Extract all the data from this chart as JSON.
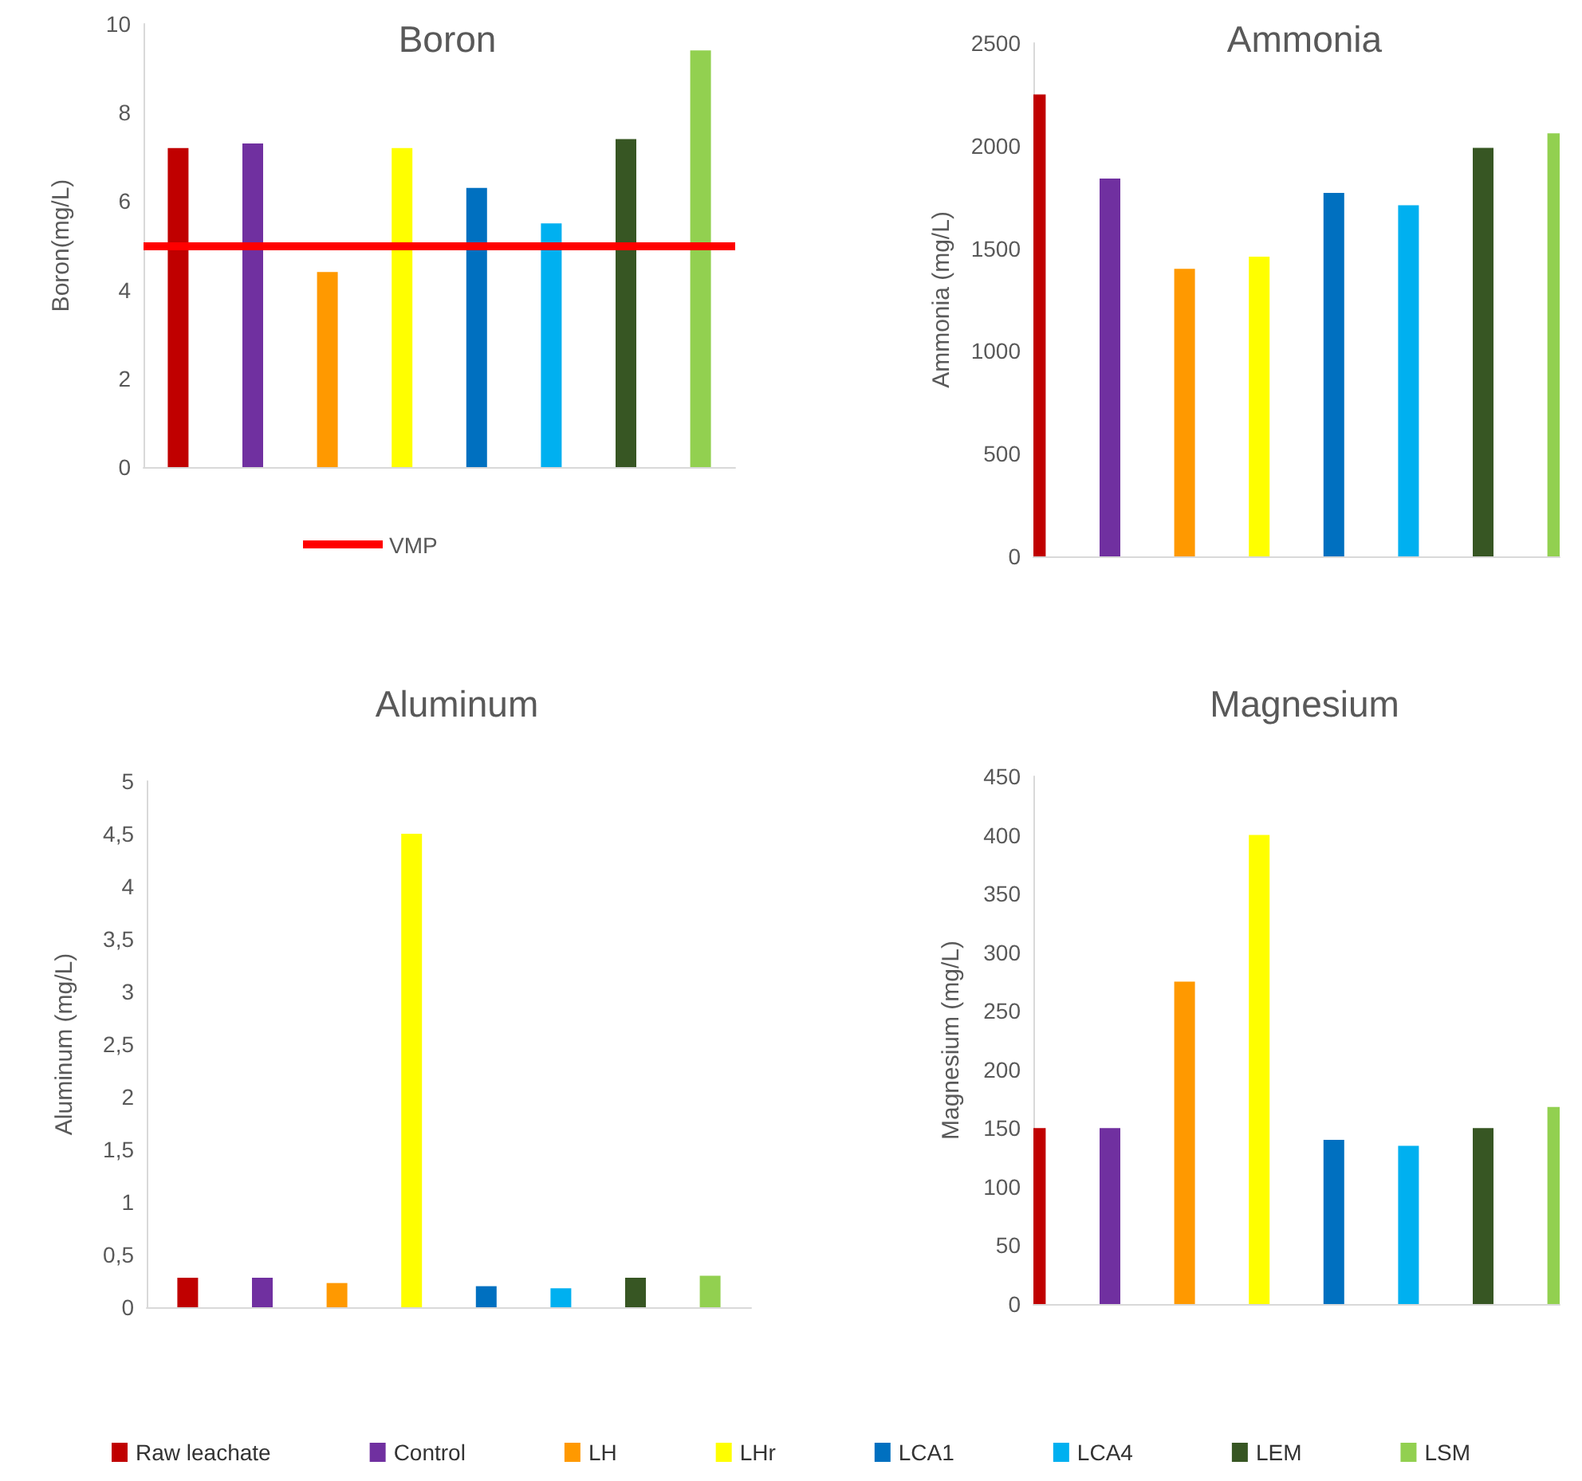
{
  "chart_data": [
    {
      "type": "bar",
      "title": "Boron",
      "ylabel": "Boron(mg/L)",
      "categories": [
        null
      ],
      "tick_labels": "y",
      "ylim": [
        0,
        10
      ],
      "yticks": [
        0,
        2,
        4,
        6,
        8,
        10
      ],
      "ref_lines": [
        {
          "axis": "y",
          "value": 5,
          "label": "VMP",
          "color": "#ff0000"
        }
      ],
      "series": [
        {
          "color": "#c00000",
          "values": [
            7.2
          ]
        },
        {
          "color": "#7030a0",
          "values": [
            7.3
          ]
        },
        {
          "color": "#ff9900",
          "values": [
            4.4
          ]
        },
        {
          "color": "#ffff00",
          "values": [
            7.2
          ]
        },
        {
          "color": "#0070c0",
          "values": [
            6.3
          ]
        },
        {
          "color": "#00b0f0",
          "values": [
            5.5
          ]
        },
        {
          "color": "#375623",
          "values": [
            7.4
          ]
        },
        {
          "color": "#92d050",
          "values": [
            9.4
          ]
        }
      ]
    },
    {
      "type": "bar",
      "title": "Ammonia",
      "ylabel": "Ammonia (mg/L)",
      "categories": [
        null
      ],
      "tick_labels": "y",
      "ylim": [
        0,
        2500
      ],
      "yticks": [
        0,
        500,
        1000,
        1500,
        2000,
        2500
      ],
      "series": [
        {
          "color": "#c00000",
          "values": [
            2250
          ]
        },
        {
          "color": "#7030a0",
          "values": [
            1840
          ]
        },
        {
          "color": "#ff9900",
          "values": [
            1400
          ]
        },
        {
          "color": "#ffff00",
          "values": [
            1460
          ]
        },
        {
          "color": "#0070c0",
          "values": [
            1770
          ]
        },
        {
          "color": "#00b0f0",
          "values": [
            1710
          ]
        },
        {
          "color": "#375623",
          "values": [
            1990
          ]
        },
        {
          "color": "#92d050",
          "values": [
            2060
          ]
        }
      ]
    },
    {
      "type": "bar",
      "title": "Aluminum",
      "ylabel": "Aluminum (mg/L)",
      "categories": [
        null
      ],
      "tick_labels": "y",
      "ylim": [
        0,
        5
      ],
      "yticks": [
        0,
        {
          "value": 0.5,
          "label": "0,5"
        },
        1,
        {
          "value": 1.5,
          "label": "1,5"
        },
        2,
        {
          "value": 2.5,
          "label": "2,5"
        },
        3,
        {
          "value": 3.5,
          "label": "3,5"
        },
        4,
        {
          "value": 4.5,
          "label": "4,5"
        },
        5
      ],
      "series": [
        {
          "color": "#c00000",
          "values": [
            0.28
          ]
        },
        {
          "color": "#7030a0",
          "values": [
            0.28
          ]
        },
        {
          "color": "#ff9900",
          "values": [
            0.23
          ]
        },
        {
          "color": "#ffff00",
          "values": [
            4.5
          ]
        },
        {
          "color": "#0070c0",
          "values": [
            0.2
          ]
        },
        {
          "color": "#00b0f0",
          "values": [
            0.18
          ]
        },
        {
          "color": "#375623",
          "values": [
            0.28
          ]
        },
        {
          "color": "#92d050",
          "values": [
            0.3
          ]
        }
      ]
    },
    {
      "type": "bar",
      "title": "Magnesium",
      "ylabel": "Magnesium (mg/L)",
      "categories": [
        null
      ],
      "tick_labels": "y",
      "ylim": [
        0,
        450
      ],
      "yticks": [
        0,
        50,
        100,
        150,
        200,
        250,
        300,
        350,
        400,
        450
      ],
      "legend": "bottom",
      "series": [
        {
          "name": "Raw leachate",
          "color": "#c00000",
          "values": [
            150
          ]
        },
        {
          "name": "Control",
          "color": "#7030a0",
          "values": [
            150
          ]
        },
        {
          "name": "LH",
          "color": "#ff9900",
          "values": [
            275
          ]
        },
        {
          "name": "LHr",
          "color": "#ffff00",
          "values": [
            400
          ]
        },
        {
          "name": "LCA1",
          "color": "#0070c0",
          "values": [
            140
          ]
        },
        {
          "name": "LCA4",
          "color": "#00b0f0",
          "values": [
            135
          ]
        },
        {
          "name": "LEM",
          "color": "#375623",
          "values": [
            150
          ]
        },
        {
          "name": "LSM",
          "color": "#92d050",
          "values": [
            168
          ]
        }
      ]
    }
  ]
}
